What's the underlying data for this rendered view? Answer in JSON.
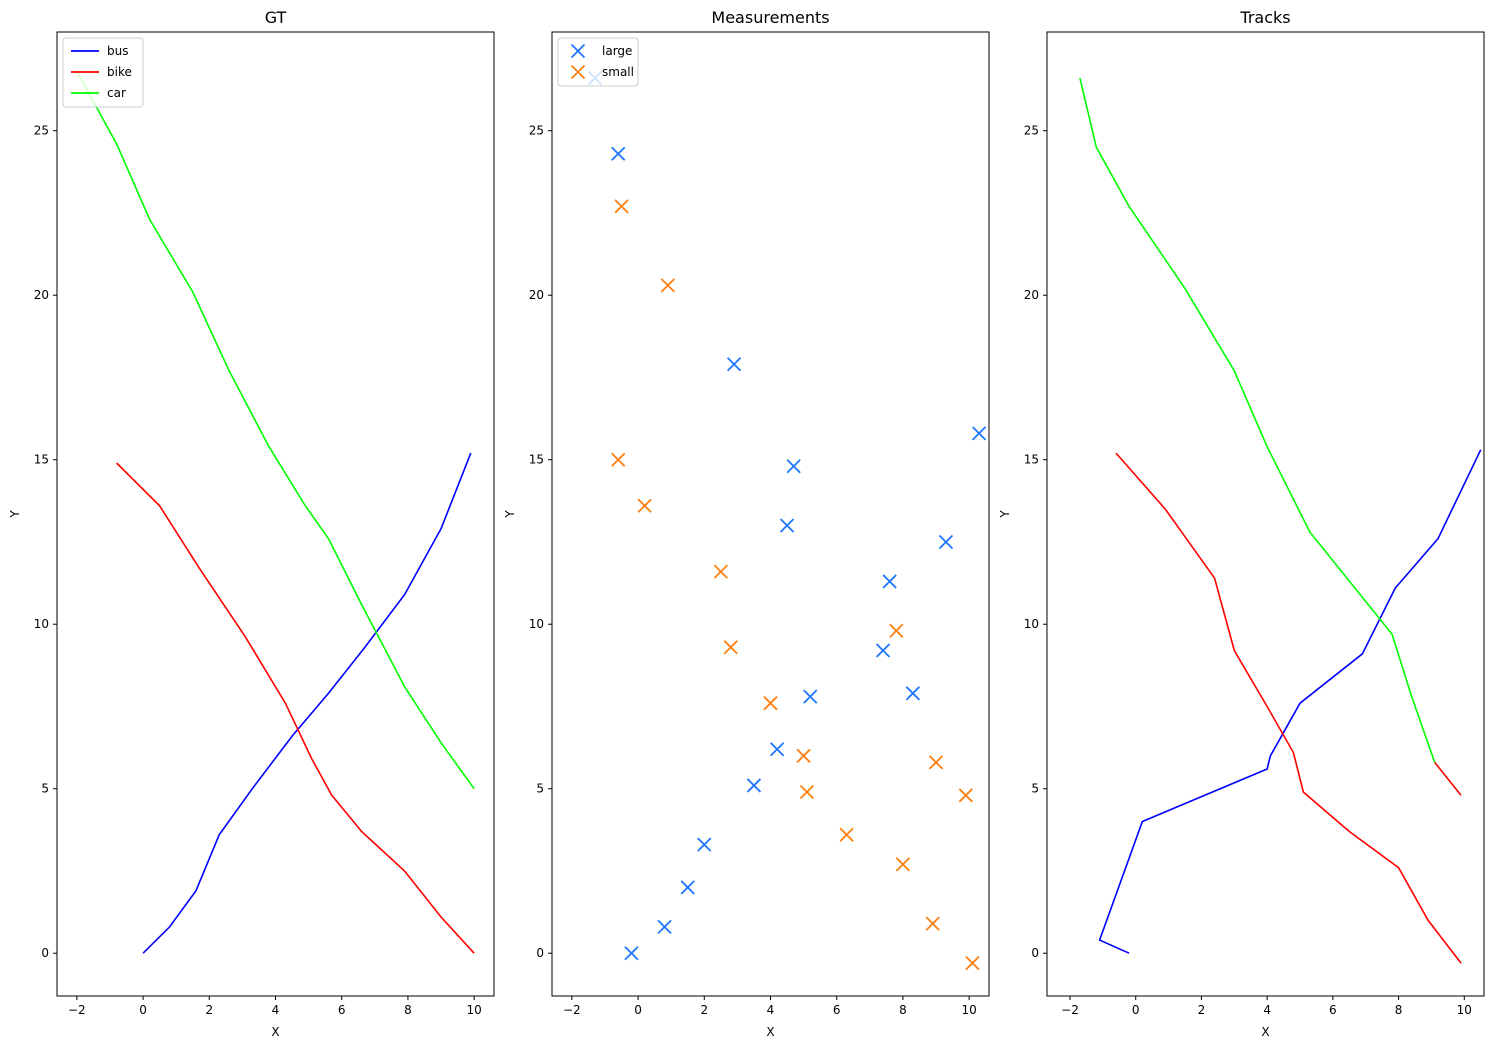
{
  "chart_data": [
    {
      "type": "line",
      "title": "GT",
      "xlabel": "X",
      "ylabel": "Y",
      "xlim": [
        -2.6,
        10.6
      ],
      "ylim": [
        -1.3,
        28
      ],
      "xticks": [
        -2,
        0,
        2,
        4,
        6,
        8,
        10
      ],
      "yticks": [
        0,
        5,
        10,
        15,
        20,
        25
      ],
      "legend": "top-left",
      "grid": false,
      "series": [
        {
          "name": "bus",
          "color": "#0000ff",
          "x": [
            0,
            0.8,
            1.6,
            2.3,
            3.3,
            4.5,
            5.6,
            6.7,
            7.9,
            9.0,
            9.9
          ],
          "y": [
            0,
            0.8,
            1.9,
            3.6,
            5.0,
            6.6,
            7.9,
            9.3,
            10.9,
            12.9,
            15.2
          ]
        },
        {
          "name": "bike",
          "color": "#ff0000",
          "x": [
            -0.8,
            0.5,
            1.7,
            3.1,
            4.3,
            5.1,
            5.7,
            6.6,
            7.9,
            9.0,
            10.0
          ],
          "y": [
            14.9,
            13.6,
            11.7,
            9.6,
            7.6,
            5.9,
            4.8,
            3.7,
            2.5,
            1.1,
            0
          ]
        },
        {
          "name": "car",
          "color": "#00ff00",
          "x": [
            -2.0,
            -0.8,
            0.2,
            1.5,
            2.6,
            3.8,
            4.9,
            5.6,
            6.6,
            7.9,
            9.0,
            10.0
          ],
          "y": [
            26.8,
            24.6,
            22.3,
            20.1,
            17.7,
            15.4,
            13.6,
            12.6,
            10.6,
            8.1,
            6.4,
            5.0
          ]
        }
      ]
    },
    {
      "type": "scatter",
      "title": "Measurements",
      "xlabel": "X",
      "ylabel": "Y",
      "xlim": [
        -2.6,
        10.6
      ],
      "ylim": [
        -1.3,
        28
      ],
      "xticks": [
        -2,
        0,
        2,
        4,
        6,
        8,
        10
      ],
      "yticks": [
        0,
        5,
        10,
        15,
        20,
        25
      ],
      "legend": "top-left",
      "grid": false,
      "series": [
        {
          "name": "large",
          "color": "#1f77ff",
          "marker": "x",
          "x": [
            -0.2,
            0.8,
            1.5,
            2.0,
            3.5,
            4.2,
            5.2,
            7.4,
            8.3,
            7.6,
            9.3,
            4.5,
            4.7,
            2.9,
            10.3,
            -0.6,
            -1.3
          ],
          "y": [
            0.0,
            0.8,
            2.0,
            3.3,
            5.1,
            6.2,
            7.8,
            9.2,
            7.9,
            11.3,
            12.5,
            13.0,
            14.8,
            17.9,
            15.8,
            24.3,
            26.6
          ]
        },
        {
          "name": "small",
          "color": "#ff7f0e",
          "marker": "x",
          "x": [
            10.1,
            8.9,
            8.0,
            6.3,
            5.1,
            5.0,
            4.0,
            2.8,
            2.5,
            0.2,
            -0.6,
            9.9,
            9.0,
            7.8,
            0.9,
            -0.5
          ],
          "y": [
            -0.3,
            0.9,
            2.7,
            3.6,
            4.9,
            6.0,
            7.6,
            9.3,
            11.6,
            13.6,
            15.0,
            4.8,
            5.8,
            9.8,
            20.3,
            22.7
          ]
        }
      ]
    },
    {
      "type": "line",
      "title": "Tracks",
      "xlabel": "X",
      "ylabel": "Y",
      "xlim": [
        -2.7,
        10.6
      ],
      "ylim": [
        -1.3,
        28
      ],
      "xticks": [
        -2,
        0,
        2,
        4,
        6,
        8,
        10
      ],
      "yticks": [
        0,
        5,
        10,
        15,
        20,
        25
      ],
      "grid": false,
      "series": [
        {
          "color": "#0000ff",
          "x": [
            -0.2,
            -1.1,
            0.2,
            4.0,
            4.1,
            5.0,
            6.9,
            7.9,
            9.2,
            10.5
          ],
          "y": [
            0.0,
            0.4,
            4.0,
            5.6,
            6.0,
            7.6,
            9.1,
            11.1,
            12.6,
            15.3
          ]
        },
        {
          "color": "#ff0000",
          "x": [
            -0.6,
            0.9,
            2.4,
            3.0,
            4.0,
            4.8,
            5.1,
            6.5,
            8.0,
            8.9,
            9.9
          ],
          "y": [
            15.2,
            13.5,
            11.4,
            9.2,
            7.5,
            6.1,
            4.9,
            3.7,
            2.6,
            1.0,
            -0.3
          ]
        },
        {
          "color": "#00ff00",
          "x": [
            -1.7,
            -1.2,
            -0.2,
            1.5,
            3.0,
            4.0,
            5.3,
            7.8,
            8.4,
            9.1
          ],
          "y": [
            26.6,
            24.5,
            22.7,
            20.2,
            17.7,
            15.4,
            12.8,
            9.7,
            7.8,
            5.8
          ]
        },
        {
          "color": "#ff0000",
          "x": [
            9.1,
            9.9
          ],
          "y": [
            5.8,
            4.8
          ]
        }
      ]
    }
  ]
}
